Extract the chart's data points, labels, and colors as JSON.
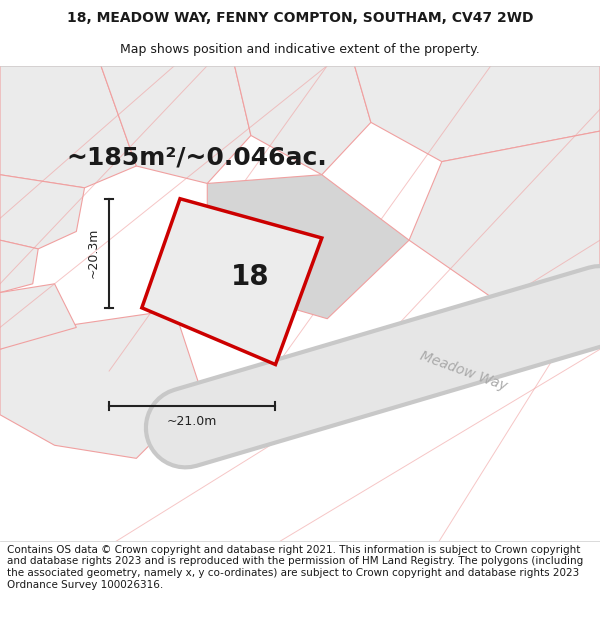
{
  "title_line1": "18, MEADOW WAY, FENNY COMPTON, SOUTHAM, CV47 2WD",
  "title_line2": "Map shows position and indicative extent of the property.",
  "area_text": "~185m²/~0.046ac.",
  "label_18": "18",
  "dim_width": "~21.0m",
  "dim_height": "~20.3m",
  "road_label": "Meadow Way",
  "footer_text": "Contains OS data © Crown copyright and database right 2021. This information is subject to Crown copyright and database rights 2023 and is reproduced with the permission of HM Land Registry. The polygons (including the associated geometry, namely x, y co-ordinates) are subject to Crown copyright and database rights 2023 Ordnance Survey 100026316.",
  "bg_color": "#f2f2f2",
  "parcel_fill": "#e8e8e8",
  "parcel_fill_dark": "#d5d5d5",
  "parcel_edge": "#f0a0a0",
  "prop_edge": "#cc0000",
  "prop_fill": "#ececec",
  "road_fill": "#e6e6e6",
  "road_edge": "#c8c8c8",
  "dim_color": "#222222",
  "road_label_color": "#aaaaaa",
  "title_bold": true,
  "title_fontsize": 10,
  "subtitle_fontsize": 9,
  "area_fontsize": 18,
  "label_fontsize": 20,
  "road_fontsize": 10,
  "dim_fontsize": 9,
  "footer_fontsize": 7.5
}
